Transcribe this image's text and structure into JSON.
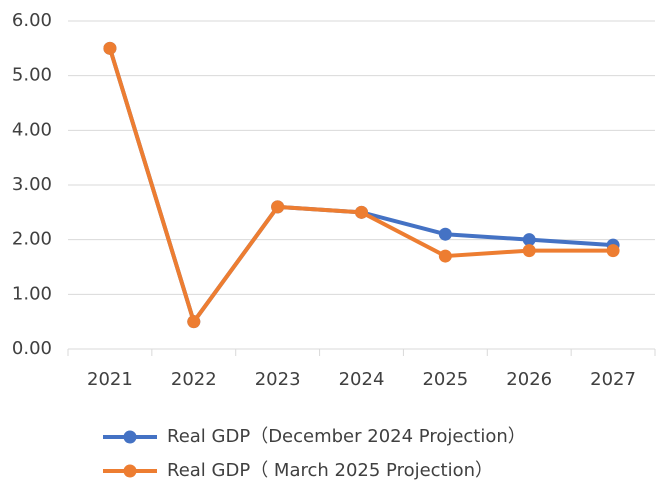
{
  "chart_data": {
    "type": "line",
    "categories": [
      "2021",
      "2022",
      "2023",
      "2024",
      "2025",
      "2026",
      "2027"
    ],
    "series": [
      {
        "name": "Real GDP（December 2024 Projection）",
        "color": "#4472c4",
        "values": [
          5.5,
          0.5,
          2.6,
          2.5,
          2.1,
          2.0,
          1.9
        ]
      },
      {
        "name": "Real GDP（ March 2025 Projection）",
        "color": "#ed7d31",
        "values": [
          5.5,
          0.5,
          2.6,
          2.5,
          1.7,
          1.8,
          1.8
        ]
      }
    ],
    "ylim": [
      0,
      6
    ],
    "yticks": [
      {
        "value": 0,
        "label": "0.00"
      },
      {
        "value": 1,
        "label": "1.00"
      },
      {
        "value": 2,
        "label": "2.00"
      },
      {
        "value": 3,
        "label": "3.00"
      },
      {
        "value": 4,
        "label": "4.00"
      },
      {
        "value": 5,
        "label": "5.00"
      },
      {
        "value": 6,
        "label": "6.00"
      }
    ],
    "grid": true
  }
}
